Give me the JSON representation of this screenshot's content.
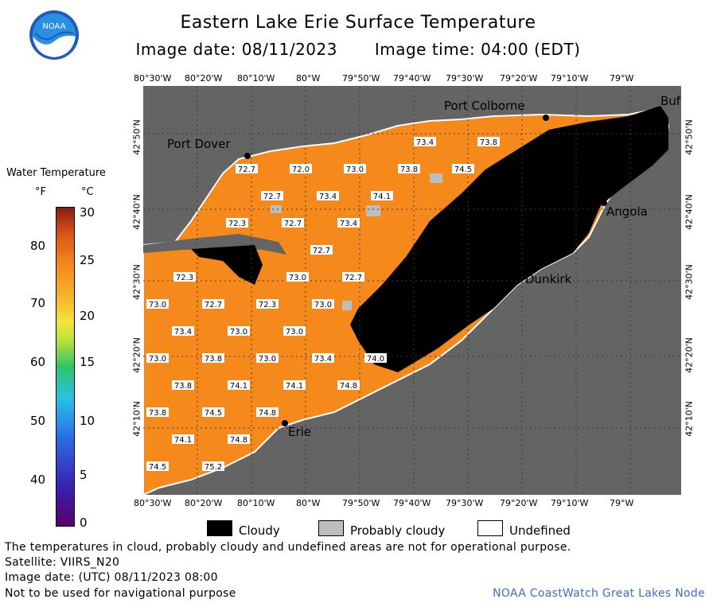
{
  "title": "Eastern Lake Erie Surface Temperature",
  "image_date": "Image date: 08/11/2023",
  "image_time": "Image time: 04:00 (EDT)",
  "logo_text": "NOAA",
  "colorbar": {
    "title": "Water Temperature",
    "unit_f": "°F",
    "unit_c": "°C",
    "f_ticks": [
      "80",
      "70",
      "60",
      "50",
      "40"
    ],
    "c_ticks": [
      "30",
      "25",
      "20",
      "15",
      "10",
      "5",
      "0"
    ]
  },
  "axes": {
    "lon_labels": [
      "80°30'W",
      "80°20'W",
      "80°10'W",
      "80°W",
      "79°50'W",
      "79°40'W",
      "79°30'W",
      "79°20'W",
      "79°10'W",
      "79°W"
    ],
    "lat_labels": [
      "42°50'N",
      "42°40'N",
      "42°30'N",
      "42°20'N",
      "42°10'N"
    ]
  },
  "cities": {
    "port_colborne": "Port Colborne",
    "port_dover": "Port Dover",
    "angola": "Angola",
    "dunkirk": "Dunkirk",
    "erie": "Erie",
    "buffalo": "Buf"
  },
  "temperature_labels": [
    "73.4",
    "73.8",
    "72.7",
    "72.0",
    "73.0",
    "73.8",
    "74.5",
    "72.7",
    "73.4",
    "74.1",
    "72.3",
    "72.7",
    "73.4",
    "72.7",
    "72.3",
    "73.0",
    "72.7",
    "73.0",
    "72.7",
    "72.3",
    "73.0",
    "73.4",
    "73.0",
    "73.0",
    "73.0",
    "73.8",
    "73.0",
    "73.4",
    "74.0",
    "73.8",
    "74.1",
    "74.1",
    "74.8",
    "73.8",
    "74.5",
    "74.8",
    "74.1",
    "74.8",
    "74.5",
    "75.2"
  ],
  "legend": {
    "cloudy": "Cloudy",
    "probably_cloudy": "Probably cloudy",
    "undefined": "Undefined"
  },
  "notes": {
    "disclaimer": "The temperatures in cloud, probably cloudy and undefined areas are not for operational purpose.",
    "satellite": "Satellite: VIIRS_N20",
    "utc": "Image date: (UTC) 08/11/2023  08:00",
    "nav": "Not to be used for navigational purpose",
    "credit": "NOAA CoastWatch Great Lakes Node"
  },
  "colors": {
    "land": "#646464",
    "water_warm": "#f5891b",
    "cloud": "#000000",
    "probably_cloudy": "#bdbdbd",
    "undefined": "#ffffff",
    "credit": "#3a6fc4"
  }
}
